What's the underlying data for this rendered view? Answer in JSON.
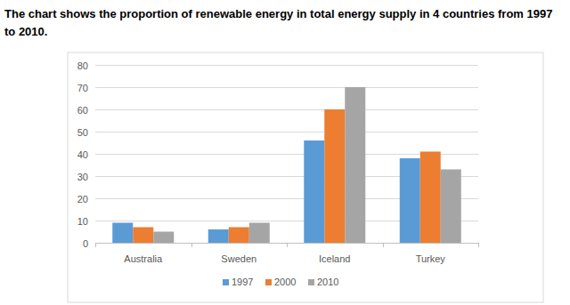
{
  "chart_data": {
    "type": "bar",
    "title": "The chart shows the proportion of renewable energy in total energy supply in 4 countries from 1997 to 2010.",
    "categories": [
      "Australia",
      "Sweden",
      "Iceland",
      "Turkey"
    ],
    "series": [
      {
        "name": "1997",
        "color": "#5b9bd5",
        "values": [
          9,
          6,
          46,
          38
        ]
      },
      {
        "name": "2000",
        "color": "#ed7d31",
        "values": [
          7,
          7,
          60,
          41
        ]
      },
      {
        "name": "2010",
        "color": "#a5a5a5",
        "values": [
          5,
          9,
          70,
          33
        ]
      }
    ],
    "ylim": [
      0,
      80
    ],
    "yticks": [
      0,
      10,
      20,
      30,
      40,
      50,
      60,
      70,
      80
    ],
    "grid": true,
    "legend": "bottom"
  }
}
